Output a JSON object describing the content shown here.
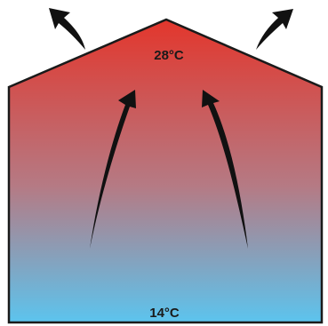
{
  "diagram": {
    "top_temperature": "28°C",
    "bottom_temperature": "14°C"
  },
  "colors": {
    "warm": "#e3362c",
    "mid": "#b57a84",
    "cool": "#5cc4ee",
    "outline": "#1a1a1a",
    "arrow": "#111111",
    "background": "#ffffff"
  },
  "icons": {
    "rising_air": "upward-curved-arrow-icon",
    "escaping_air": "outward-curved-arrow-icon"
  }
}
